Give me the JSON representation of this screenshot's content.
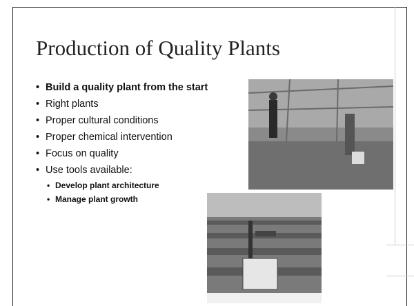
{
  "title": "Production of Quality Plants",
  "bullets": [
    "Build a quality plant from the start",
    "Right plants",
    "Proper cultural conditions",
    "Proper chemical intervention",
    "Focus on quality",
    "Use tools available:"
  ],
  "sub_bullets": [
    "Develop plant architecture",
    "Manage plant growth"
  ]
}
